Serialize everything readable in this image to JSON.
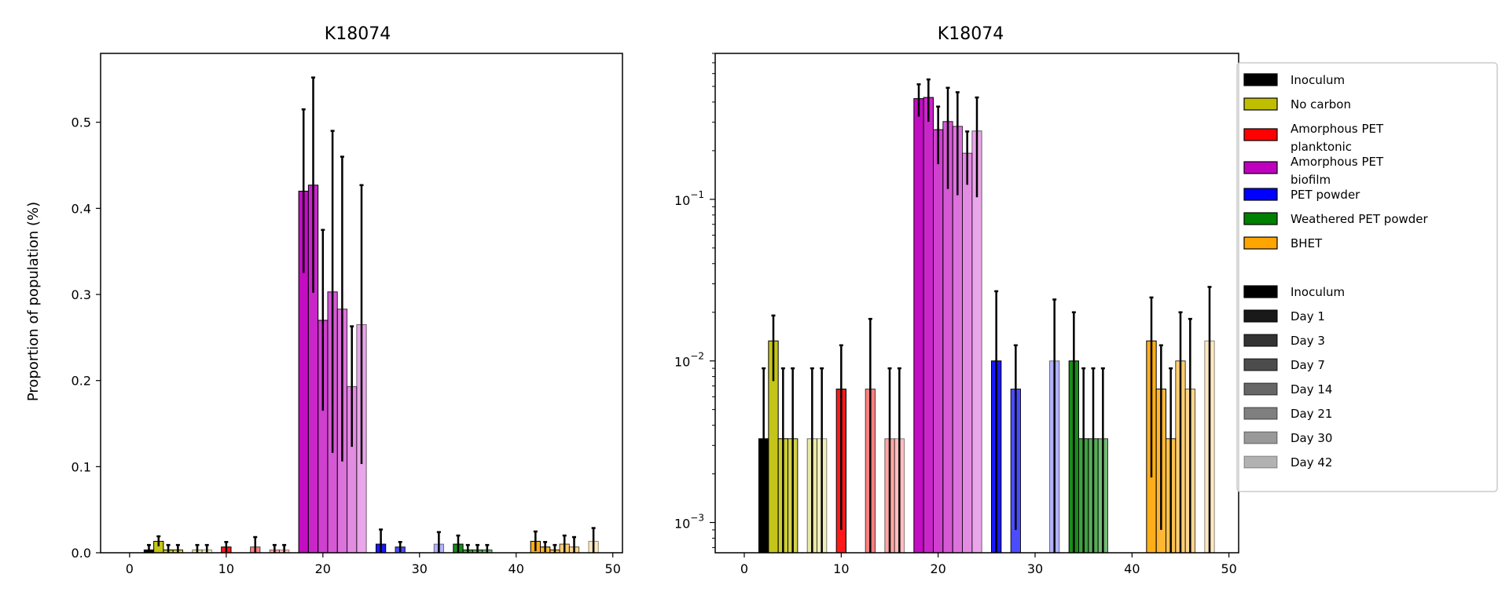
{
  "chart_data": [
    {
      "type": "bar",
      "title": "K18074",
      "ylabel": "Proportion of population (%)",
      "xlabel": "",
      "yscale": "linear",
      "xlim": [
        -3,
        51
      ],
      "ylim": [
        0,
        0.58
      ],
      "xticks": [
        0,
        10,
        20,
        30,
        40,
        50
      ],
      "yticks": [
        0.0,
        0.1,
        0.2,
        0.3,
        0.4,
        0.5
      ],
      "ytick_labels": [
        "0.0",
        "0.1",
        "0.2",
        "0.3",
        "0.4",
        "0.5"
      ]
    },
    {
      "type": "bar",
      "title": "K18074",
      "ylabel": "",
      "xlabel": "",
      "yscale": "log",
      "xlim": [
        -3,
        51
      ],
      "ylim": [
        0.00065,
        0.8
      ],
      "xticks": [
        0,
        10,
        20,
        30,
        40,
        50
      ],
      "yticks": [
        0.001,
        0.01,
        0.1
      ],
      "ytick_exponents": [
        "−3",
        "−2",
        "−1"
      ]
    }
  ],
  "bars": [
    {
      "x": 2,
      "value": 0.0033,
      "err": 0.0057,
      "color": "#000000",
      "alpha": 1.0
    },
    {
      "x": 3,
      "value": 0.0133,
      "err": 0.0058,
      "color": "#bfbf00",
      "alpha": 0.9
    },
    {
      "x": 4,
      "value": 0.0033,
      "err": 0.0057,
      "color": "#bfbf00",
      "alpha": 0.8
    },
    {
      "x": 5,
      "value": 0.0033,
      "err": 0.0057,
      "color": "#bfbf00",
      "alpha": 0.7
    },
    {
      "x": 7,
      "value": 0.0033,
      "err": 0.0057,
      "color": "#bfbf00",
      "alpha": 0.35
    },
    {
      "x": 8,
      "value": 0.0033,
      "err": 0.0057,
      "color": "#bfbf00",
      "alpha": 0.25
    },
    {
      "x": 10,
      "value": 0.0067,
      "err": 0.0058,
      "color": "#ff0000",
      "alpha": 0.9
    },
    {
      "x": 13,
      "value": 0.0067,
      "err": 0.0115,
      "color": "#ff0000",
      "alpha": 0.5
    },
    {
      "x": 15,
      "value": 0.0033,
      "err": 0.0057,
      "color": "#ff0000",
      "alpha": 0.35
    },
    {
      "x": 16,
      "value": 0.0033,
      "err": 0.0057,
      "color": "#ff0000",
      "alpha": 0.25
    },
    {
      "x": 18,
      "value": 0.42,
      "err": 0.095,
      "color": "#bf00bf",
      "alpha": 0.95
    },
    {
      "x": 19,
      "value": 0.427,
      "err": 0.125,
      "color": "#bf00bf",
      "alpha": 0.85
    },
    {
      "x": 20,
      "value": 0.27,
      "err": 0.105,
      "color": "#bf00bf",
      "alpha": 0.75
    },
    {
      "x": 21,
      "value": 0.303,
      "err": 0.187,
      "color": "#bf00bf",
      "alpha": 0.65
    },
    {
      "x": 22,
      "value": 0.283,
      "err": 0.177,
      "color": "#bf00bf",
      "alpha": 0.55
    },
    {
      "x": 23,
      "value": 0.193,
      "err": 0.07,
      "color": "#bf00bf",
      "alpha": 0.45
    },
    {
      "x": 24,
      "value": 0.265,
      "err": 0.162,
      "color": "#bf00bf",
      "alpha": 0.35
    },
    {
      "x": 26,
      "value": 0.01,
      "err": 0.017,
      "color": "#0000ff",
      "alpha": 0.9
    },
    {
      "x": 28,
      "value": 0.0067,
      "err": 0.0058,
      "color": "#0000ff",
      "alpha": 0.7
    },
    {
      "x": 32,
      "value": 0.01,
      "err": 0.014,
      "color": "#0000ff",
      "alpha": 0.3
    },
    {
      "x": 34,
      "value": 0.01,
      "err": 0.01,
      "color": "#008000",
      "alpha": 0.9
    },
    {
      "x": 35,
      "value": 0.0033,
      "err": 0.0057,
      "color": "#008000",
      "alpha": 0.75
    },
    {
      "x": 36,
      "value": 0.0033,
      "err": 0.0057,
      "color": "#008000",
      "alpha": 0.65
    },
    {
      "x": 37,
      "value": 0.0033,
      "err": 0.0057,
      "color": "#008000",
      "alpha": 0.55
    },
    {
      "x": 42,
      "value": 0.0133,
      "err": 0.0114,
      "color": "#ffa500",
      "alpha": 0.9
    },
    {
      "x": 43,
      "value": 0.0067,
      "err": 0.0058,
      "color": "#ffa500",
      "alpha": 0.8
    },
    {
      "x": 44,
      "value": 0.0033,
      "err": 0.0057,
      "color": "#ffa500",
      "alpha": 0.7
    },
    {
      "x": 45,
      "value": 0.01,
      "err": 0.01,
      "color": "#ffa500",
      "alpha": 0.55
    },
    {
      "x": 46,
      "value": 0.0067,
      "err": 0.0115,
      "color": "#ffa500",
      "alpha": 0.45
    },
    {
      "x": 48,
      "value": 0.0133,
      "err": 0.0154,
      "color": "#ffa500",
      "alpha": 0.25
    }
  ],
  "legend": {
    "placement": "right",
    "conditions": [
      {
        "label": "Inoculum",
        "color": "#000000"
      },
      {
        "label": "No carbon",
        "color": "#bfbf00"
      },
      {
        "label": "Amorphous PET\nplanktonic",
        "color": "#ff0000"
      },
      {
        "label": "Amorphous PET\nbiofilm",
        "color": "#bf00bf"
      },
      {
        "label": "PET powder",
        "color": "#0000ff"
      },
      {
        "label": "Weathered PET powder",
        "color": "#008000"
      },
      {
        "label": "BHET",
        "color": "#ffa500"
      }
    ],
    "days": [
      {
        "label": "Inoculum",
        "alpha": 1.0
      },
      {
        "label": "Day 1",
        "alpha": 0.9
      },
      {
        "label": "Day 3",
        "alpha": 0.8
      },
      {
        "label": "Day 7",
        "alpha": 0.7
      },
      {
        "label": "Day 14",
        "alpha": 0.6
      },
      {
        "label": "Day 21",
        "alpha": 0.5
      },
      {
        "label": "Day 30",
        "alpha": 0.4
      },
      {
        "label": "Day 42",
        "alpha": 0.3
      }
    ]
  }
}
